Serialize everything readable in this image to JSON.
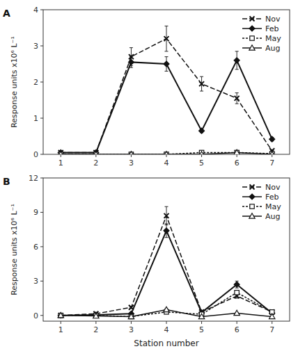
{
  "chart_data": [
    {
      "type": "line",
      "title": "A",
      "ylabel": "Response units x10⁶ L⁻¹",
      "x": [
        1,
        2,
        3,
        4,
        5,
        6,
        7
      ],
      "xlim": [
        0.5,
        7.5
      ],
      "xticks": [
        1,
        2,
        3,
        4,
        5,
        6,
        7
      ],
      "ylim": [
        0,
        4
      ],
      "yticks": [
        0,
        1,
        2,
        3,
        4
      ],
      "grid": false,
      "legend": "upper right",
      "series": [
        {
          "name": "Nov",
          "color": "#111111",
          "marker": "x",
          "line_style": "dashed",
          "values": [
            0.05,
            0.05,
            2.7,
            3.2,
            1.95,
            1.55,
            0.1
          ],
          "errors": [
            0.0,
            0.0,
            0.25,
            0.35,
            0.2,
            0.15,
            0.0
          ]
        },
        {
          "name": "Feb",
          "color": "#111111",
          "marker": "diamond",
          "line_style": "solid",
          "values": [
            0.05,
            0.05,
            2.55,
            2.5,
            0.65,
            2.6,
            0.42
          ],
          "errors": [
            0.0,
            0.0,
            0.15,
            0.2,
            0.05,
            0.25,
            0.05
          ]
        },
        {
          "name": "May",
          "color": "#111111",
          "marker": "square",
          "line_style": "dotted",
          "values": [
            0.0,
            0.0,
            0.0,
            0.0,
            0.05,
            0.05,
            0.02
          ],
          "errors": [
            0.0,
            0.0,
            0.0,
            0.0,
            0.0,
            0.0,
            0.0
          ]
        },
        {
          "name": "Aug",
          "color": "#111111",
          "marker": "triangle",
          "line_style": "solid",
          "values": [
            0.0,
            0.0,
            0.0,
            0.0,
            0.0,
            0.05,
            0.0
          ],
          "errors": [
            0.0,
            0.0,
            0.0,
            0.0,
            0.0,
            0.0,
            0.0
          ]
        }
      ]
    },
    {
      "type": "line",
      "title": "B",
      "ylabel": "Response units x10⁶ L⁻¹",
      "xlabel": "Station number",
      "x": [
        1,
        2,
        3,
        4,
        5,
        6,
        7
      ],
      "xlim": [
        0.5,
        7.5
      ],
      "xticks": [
        1,
        2,
        3,
        4,
        5,
        6,
        7
      ],
      "ylim": [
        -0.5,
        12
      ],
      "yticks": [
        0,
        3,
        6,
        9,
        12
      ],
      "grid": false,
      "legend": "upper right",
      "series": [
        {
          "name": "Nov",
          "color": "#111111",
          "marker": "x",
          "line_style": "dashed",
          "values": [
            0.0,
            0.15,
            0.7,
            8.7,
            0.3,
            1.7,
            0.3
          ],
          "errors": [
            0.0,
            0.0,
            0.1,
            0.8,
            0.1,
            0.2,
            0.05
          ]
        },
        {
          "name": "Feb",
          "color": "#111111",
          "marker": "diamond",
          "line_style": "solid",
          "values": [
            0.0,
            0.05,
            0.15,
            7.4,
            0.25,
            2.7,
            0.2
          ],
          "errors": [
            0.0,
            0.0,
            0.05,
            0.6,
            0.05,
            0.3,
            0.05
          ]
        },
        {
          "name": "May",
          "color": "#111111",
          "marker": "square",
          "line_style": "dotted",
          "values": [
            0.0,
            0.0,
            -0.1,
            0.3,
            0.1,
            2.0,
            0.3
          ],
          "errors": [
            0.0,
            0.0,
            0.0,
            0.1,
            0.0,
            0.1,
            0.05
          ]
        },
        {
          "name": "Aug",
          "color": "#111111",
          "marker": "triangle",
          "line_style": "solid",
          "values": [
            0.0,
            -0.05,
            -0.1,
            0.5,
            -0.1,
            0.2,
            -0.1
          ],
          "errors": [
            0.0,
            0.0,
            0.0,
            0.1,
            0.0,
            0.05,
            0.0
          ]
        }
      ]
    }
  ]
}
